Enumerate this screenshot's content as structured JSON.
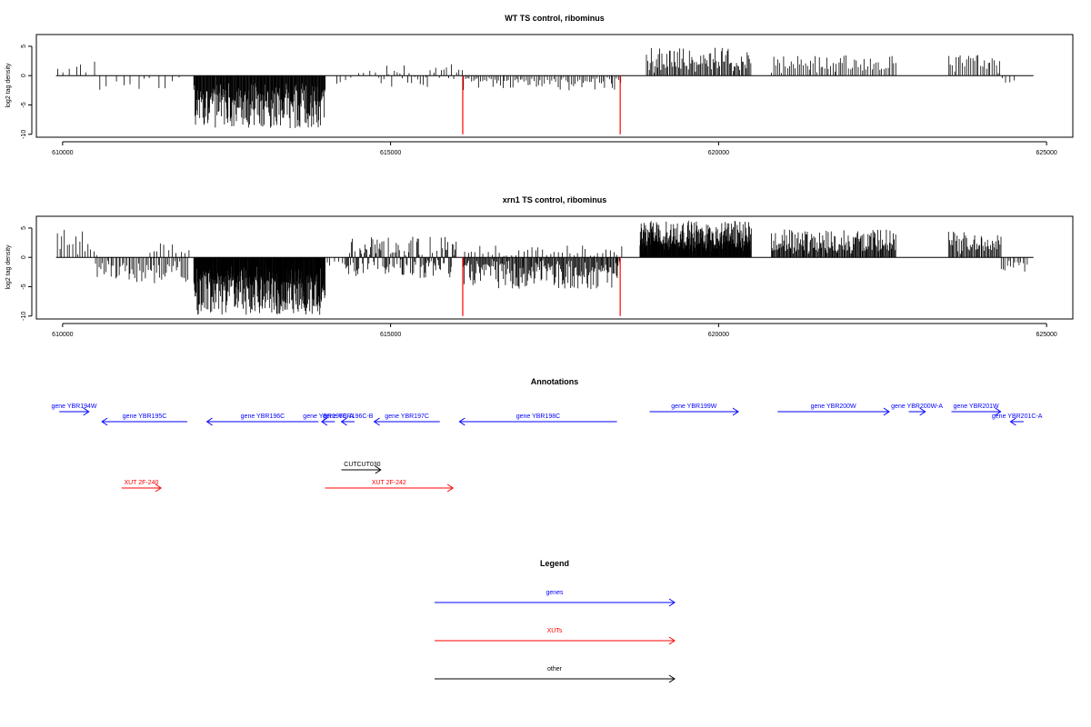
{
  "chart_data": [
    {
      "type": "bar",
      "title": "WT TS control, ribominus",
      "xlabel": "",
      "ylabel": "log2 tag density",
      "xlim": [
        609600,
        625400
      ],
      "ylim": [
        -10.5,
        7
      ],
      "xticks": [
        610000,
        615000,
        620000,
        625000
      ],
      "xtick_labels": [
        "610000",
        "615000",
        "620000",
        "625000"
      ],
      "yticks": [
        5,
        0,
        -5,
        -10
      ],
      "ytick_labels": [
        "5",
        "0",
        "-5",
        "-10"
      ],
      "baseline": 0,
      "red_markers": [
        616100,
        618500
      ],
      "segments": [
        {
          "from": 609900,
          "to": 610500,
          "amp_min": 0.5,
          "amp_max": 2.5,
          "dir": "up",
          "step": 90
        },
        {
          "from": 610550,
          "to": 611800,
          "amp_min": 0.5,
          "amp_max": 2.5,
          "dir": "down",
          "step": 110
        },
        {
          "from": 612000,
          "to": 614000,
          "amp_min": 2.5,
          "amp_max": 9.0,
          "dir": "down",
          "step": 8
        },
        {
          "from": 614150,
          "to": 614400,
          "amp_min": 0.5,
          "amp_max": 1.5,
          "dir": "down",
          "step": 80
        },
        {
          "from": 614500,
          "to": 614800,
          "amp_min": 0.5,
          "amp_max": 1.5,
          "dir": "up",
          "step": 80
        },
        {
          "from": 614800,
          "to": 616100,
          "amp_min": 0.3,
          "amp_max": 2.0,
          "dir": "mixed",
          "step": 40
        },
        {
          "from": 616100,
          "to": 618500,
          "amp_min": 0.3,
          "amp_max": 2.5,
          "dir": "down",
          "step": 30
        },
        {
          "from": 618900,
          "to": 620500,
          "amp_min": 1.0,
          "amp_max": 4.8,
          "dir": "up",
          "step": 18
        },
        {
          "from": 620800,
          "to": 622700,
          "amp_min": 0.8,
          "amp_max": 3.5,
          "dir": "up",
          "step": 30
        },
        {
          "from": 623500,
          "to": 624300,
          "amp_min": 0.8,
          "amp_max": 3.5,
          "dir": "up",
          "step": 30
        },
        {
          "from": 624300,
          "to": 624500,
          "amp_min": 0.5,
          "amp_max": 1.2,
          "dir": "down",
          "step": 60
        }
      ]
    },
    {
      "type": "bar",
      "title": "xrn1 TS control, ribominus",
      "xlabel": "",
      "ylabel": "log2 tag density",
      "xlim": [
        609600,
        625400
      ],
      "ylim": [
        -10.5,
        7
      ],
      "xticks": [
        610000,
        615000,
        620000,
        625000
      ],
      "xtick_labels": [
        "610000",
        "615000",
        "620000",
        "625000"
      ],
      "yticks": [
        5,
        0,
        -5,
        -10
      ],
      "ytick_labels": [
        "5",
        "0",
        "-5",
        "-10"
      ],
      "baseline": 0,
      "red_markers": [
        616100,
        618500
      ],
      "segments": [
        {
          "from": 609900,
          "to": 610500,
          "amp_min": 0.5,
          "amp_max": 5.0,
          "dir": "up",
          "step": 40
        },
        {
          "from": 610500,
          "to": 611900,
          "amp_min": 1.0,
          "amp_max": 4.5,
          "dir": "down",
          "step": 25
        },
        {
          "from": 611300,
          "to": 611900,
          "amp_min": 0.5,
          "amp_max": 2.5,
          "dir": "up",
          "step": 60
        },
        {
          "from": 612000,
          "to": 614000,
          "amp_min": 3.0,
          "amp_max": 9.8,
          "dir": "down",
          "step": 6
        },
        {
          "from": 614000,
          "to": 614300,
          "amp_min": 0.5,
          "amp_max": 1.5,
          "dir": "down",
          "step": 60
        },
        {
          "from": 614300,
          "to": 616000,
          "amp_min": 0.5,
          "amp_max": 3.5,
          "dir": "mixed",
          "step": 14
        },
        {
          "from": 616100,
          "to": 618500,
          "amp_min": 0.5,
          "amp_max": 5.5,
          "dir": "down",
          "step": 14
        },
        {
          "from": 616100,
          "to": 618500,
          "amp_min": 0.3,
          "amp_max": 2.0,
          "dir": "up",
          "step": 60
        },
        {
          "from": 618800,
          "to": 620500,
          "amp_min": 2.0,
          "amp_max": 6.3,
          "dir": "up",
          "step": 6
        },
        {
          "from": 620800,
          "to": 622700,
          "amp_min": 1.0,
          "amp_max": 4.8,
          "dir": "up",
          "step": 12
        },
        {
          "from": 623500,
          "to": 624300,
          "amp_min": 1.0,
          "amp_max": 4.5,
          "dir": "up",
          "step": 16
        },
        {
          "from": 624300,
          "to": 624700,
          "amp_min": 0.8,
          "amp_max": 2.6,
          "dir": "down",
          "step": 30
        }
      ]
    },
    {
      "type": "other",
      "title": "Annotations",
      "features": [
        {
          "label": "gene YBR194W",
          "start": 609950,
          "end": 610400,
          "strand": "+",
          "lane": 0,
          "color": "#0000ff"
        },
        {
          "label": "gene YBR195C",
          "start": 610600,
          "end": 611900,
          "strand": "-",
          "lane": 1,
          "color": "#0000ff"
        },
        {
          "label": "gene YBR196C",
          "start": 612200,
          "end": 613900,
          "strand": "-",
          "lane": 1,
          "color": "#0000ff"
        },
        {
          "label": "gene YBR196C-A",
          "start": 613950,
          "end": 614150,
          "strand": "-",
          "lane": 1,
          "color": "#0000ff"
        },
        {
          "label": "gene YBR196C-B",
          "start": 614250,
          "end": 614450,
          "strand": "-",
          "lane": 1,
          "color": "#0000ff"
        },
        {
          "label": "gene YBR197C",
          "start": 614750,
          "end": 615750,
          "strand": "-",
          "lane": 1,
          "color": "#0000ff"
        },
        {
          "label": "gene YBR198C",
          "start": 616050,
          "end": 618450,
          "strand": "-",
          "lane": 1,
          "color": "#0000ff"
        },
        {
          "label": "gene YBR199W",
          "start": 618950,
          "end": 620300,
          "strand": "+",
          "lane": 0,
          "color": "#0000ff"
        },
        {
          "label": "gene YBR200W",
          "start": 620900,
          "end": 622600,
          "strand": "+",
          "lane": 0,
          "color": "#0000ff"
        },
        {
          "label": "gene YBR200W-A",
          "start": 622900,
          "end": 623150,
          "strand": "+",
          "lane": 0,
          "color": "#0000ff"
        },
        {
          "label": "gene YBR201W",
          "start": 623550,
          "end": 624300,
          "strand": "+",
          "lane": 0,
          "color": "#0000ff"
        },
        {
          "label": "gene YBR201C-A",
          "start": 624450,
          "end": 624650,
          "strand": "-",
          "lane": 1,
          "color": "#0000ff"
        },
        {
          "label": "CUT",
          "start": 614250,
          "end": 614850,
          "strand": "+",
          "lane": 2,
          "color": "#000000"
        },
        {
          "label": "CUT030",
          "start": 614250,
          "end": 614850,
          "strand": "+",
          "lane": 2,
          "color": "#000000"
        },
        {
          "label": "XUT 2F-240",
          "start": 610900,
          "end": 611500,
          "strand": "+",
          "lane": 3,
          "color": "#ff0000"
        },
        {
          "label": "XUT 2F-242",
          "start": 614000,
          "end": 615950,
          "strand": "+",
          "lane": 3,
          "color": "#ff0000"
        }
      ]
    },
    {
      "type": "other",
      "title": "Legend",
      "entries": [
        {
          "label": "genes",
          "color": "#0000ff"
        },
        {
          "label": "XUTs",
          "color": "#ff0000"
        },
        {
          "label": "other",
          "color": "#000000"
        }
      ]
    }
  ]
}
